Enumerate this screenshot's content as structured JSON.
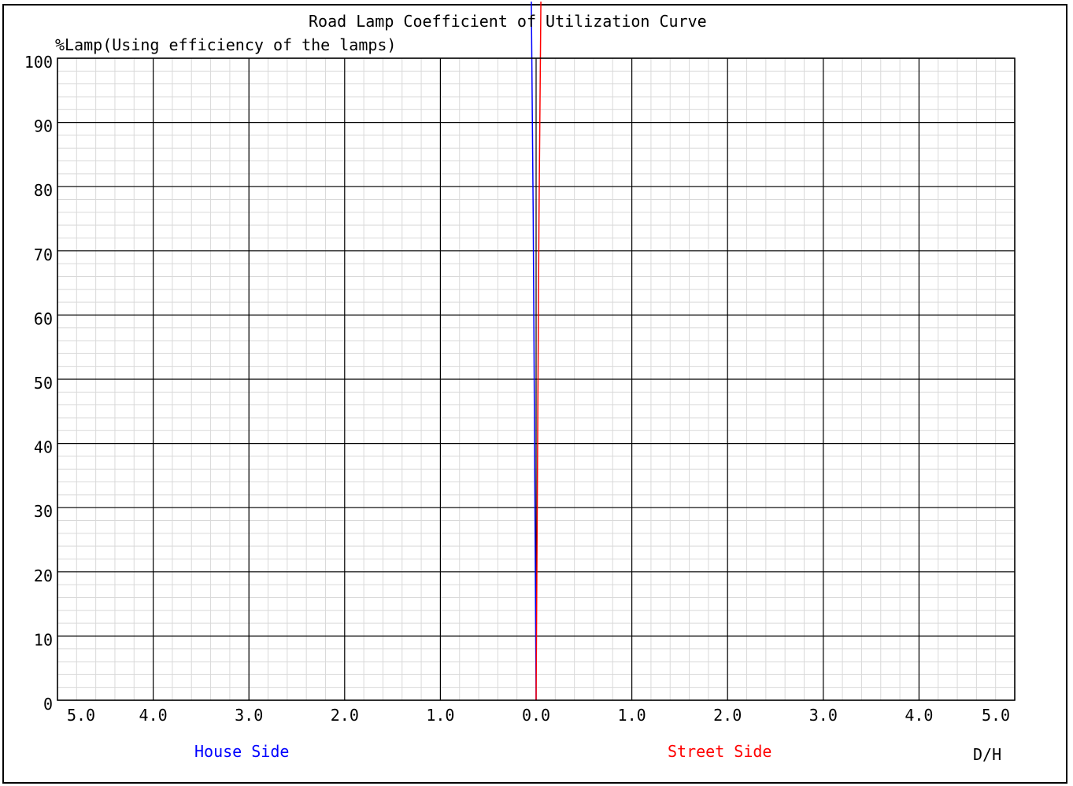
{
  "chart_data": {
    "type": "line",
    "title": "Road Lamp Coefficient of Utilization Curve",
    "ylabel": "%Lamp(Using efficiency of the lamps)",
    "xlabel": "D/H",
    "house_side_label": "House Side",
    "street_side_label": "Street Side",
    "xlim": [
      -5,
      5
    ],
    "ylim": [
      0,
      100
    ],
    "x_ticks": [
      "5.0",
      "4.0",
      "3.0",
      "2.0",
      "1.0",
      "0.0",
      "1.0",
      "2.0",
      "3.0",
      "4.0",
      "5.0"
    ],
    "y_ticks": [
      "0",
      "10",
      "20",
      "30",
      "40",
      "50",
      "60",
      "70",
      "80",
      "90",
      "100"
    ],
    "grid": true,
    "series": [
      {
        "color": "#0000ff",
        "x": [
          0.0,
          -0.01,
          -0.02,
          -0.03,
          -0.05
        ],
        "y": [
          0,
          25,
          50,
          75,
          110
        ]
      },
      {
        "color": "#ff0000",
        "x": [
          0.0,
          0.01,
          0.02,
          0.03,
          0.05
        ],
        "y": [
          0,
          25,
          50,
          75,
          110
        ]
      }
    ]
  },
  "colors": {
    "house_side": "#0000ff",
    "street_side": "#ff0000",
    "grid_major": "#000000",
    "grid_minor": "#d9d9d9"
  }
}
